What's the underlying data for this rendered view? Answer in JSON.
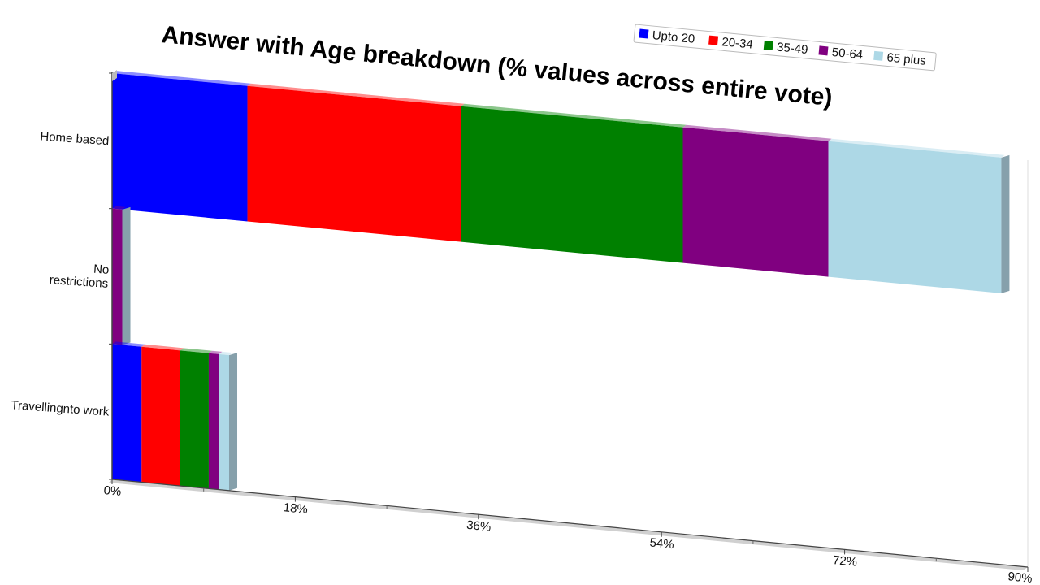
{
  "chart_data": {
    "type": "bar",
    "orientation": "horizontal",
    "stacked": true,
    "title": "Answer with Age breakdown (% values across entire vote)",
    "categories": [
      "Home based",
      "No\nrestrictions",
      "Travellingnto work"
    ],
    "series": [
      {
        "name": "Upto 20",
        "color": "#0000ff",
        "values": [
          13.3,
          0,
          2.9
        ]
      },
      {
        "name": "20-34",
        "color": "#ff0000",
        "values": [
          21.0,
          0,
          3.8
        ]
      },
      {
        "name": "35-49",
        "color": "#008000",
        "values": [
          21.8,
          0,
          2.8
        ]
      },
      {
        "name": "50-64",
        "color": "#800080",
        "values": [
          14.3,
          1.0,
          1.0
        ]
      },
      {
        "name": "65 plus",
        "color": "#add8e6",
        "values": [
          17.0,
          0,
          1.0
        ]
      }
    ],
    "x_ticks": [
      "0%",
      "18%",
      "36%",
      "54%",
      "72%",
      "90%"
    ],
    "xlim": [
      0,
      90
    ],
    "legend_position": "top-right",
    "grid": false
  }
}
